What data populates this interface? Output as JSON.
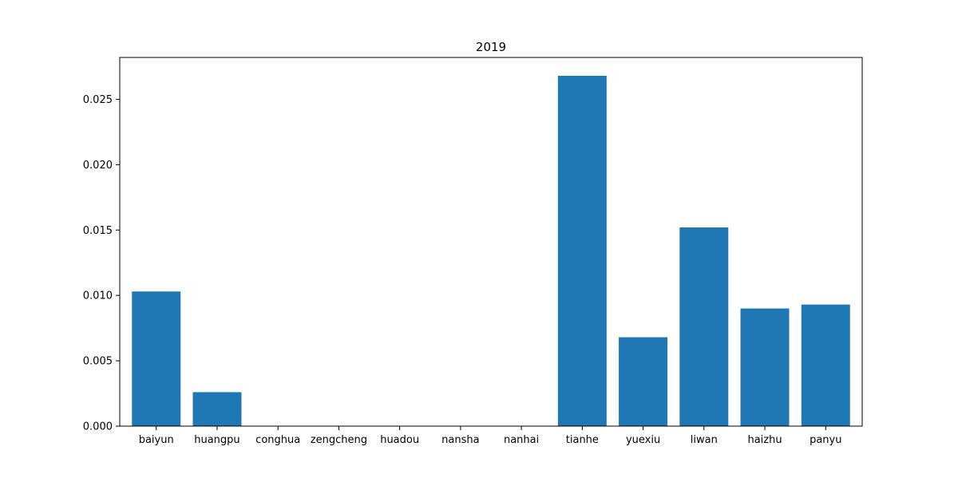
{
  "chart_data": {
    "type": "bar",
    "title": "2019",
    "xlabel": "",
    "ylabel": "",
    "categories": [
      "baiyun",
      "huangpu",
      "conghua",
      "zengcheng",
      "huadou",
      "nansha",
      "nanhai",
      "tianhe",
      "yuexiu",
      "liwan",
      "haizhu",
      "panyu"
    ],
    "values": [
      0.0103,
      0.0026,
      0,
      0,
      0,
      0,
      0,
      0.0268,
      0.0068,
      0.0152,
      0.009,
      0.0093
    ],
    "ylim": [
      0,
      0.0282
    ],
    "yticks": [
      0.0,
      0.005,
      0.01,
      0.015,
      0.02,
      0.025
    ],
    "ytick_labels": [
      "0.000",
      "0.005",
      "0.010",
      "0.015",
      "0.020",
      "0.025"
    ],
    "bar_color": "#1f77b4",
    "grid": false,
    "legend": "none"
  }
}
